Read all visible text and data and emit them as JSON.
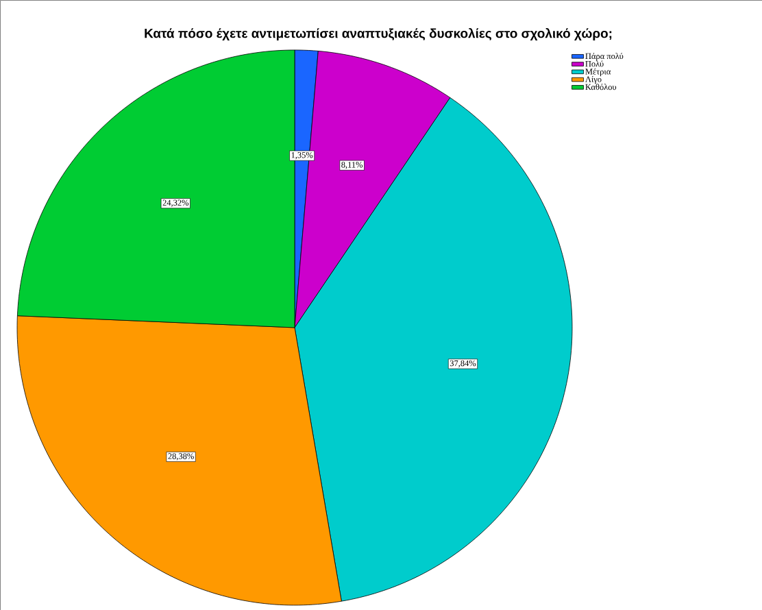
{
  "chart_data": {
    "type": "pie",
    "title": "Κατά πόσο έχετε αντιμετωπίσει αναπτυξιακές δυσκολίες στο σχολικό χώρο;",
    "categories": [
      "Πάρα πολύ",
      "Πολύ",
      "Μέτρια",
      "Λίγο",
      "Καθόλου"
    ],
    "values": [
      1.35,
      8.11,
      37.84,
      28.38,
      24.32
    ],
    "value_labels": [
      "1,35%",
      "8,11%",
      "37,84%",
      "28,38%",
      "24,32%"
    ],
    "colors": [
      "#1a66ff",
      "#cc00cc",
      "#00cccc",
      "#ff9900",
      "#00cc33"
    ],
    "legend": "top right"
  }
}
